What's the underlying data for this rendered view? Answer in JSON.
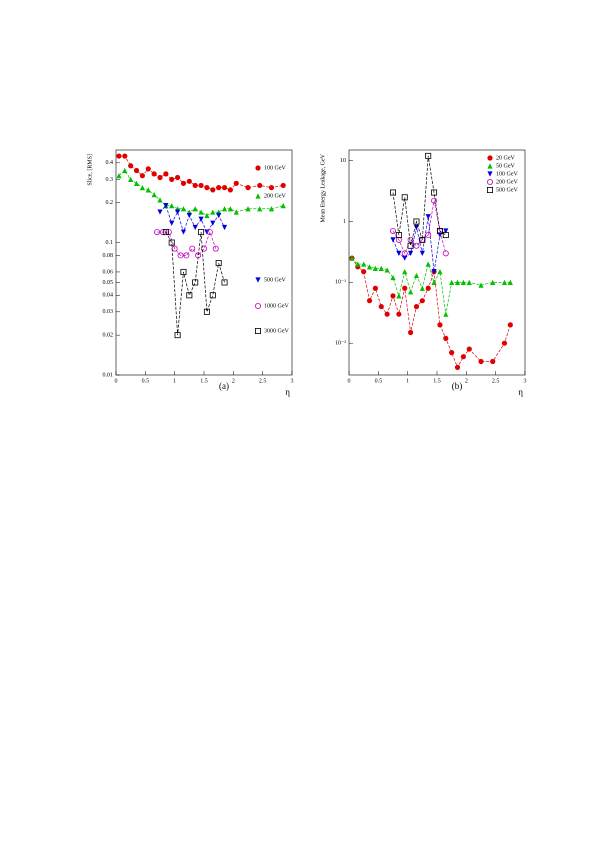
{
  "chart_data": [
    {
      "type": "line",
      "panel_label": "(a)",
      "y_label": "Slice, [RMS]",
      "x_label": "η",
      "log_y": true,
      "xlim": [
        0,
        3
      ],
      "xticks": [
        0,
        0.5,
        1,
        1.5,
        2,
        2.5,
        3
      ],
      "ylim": [
        0.01,
        0.5
      ],
      "yticks": [
        0.01,
        0.02,
        0.03,
        0.04,
        0.05,
        0.06,
        0.08,
        0.1,
        0.2,
        0.3,
        0.4
      ],
      "series": [
        {
          "name": "100 GeV",
          "color": "#e00000",
          "marker": "circle",
          "x": [
            0.05,
            0.15,
            0.25,
            0.35,
            0.45,
            0.55,
            0.65,
            0.75,
            0.85,
            0.95,
            1.05,
            1.15,
            1.25,
            1.35,
            1.45,
            1.55,
            1.65,
            1.75,
            1.85,
            1.95,
            2.05,
            2.25,
            2.45,
            2.65,
            2.85
          ],
          "values": [
            0.45,
            0.45,
            0.38,
            0.35,
            0.32,
            0.36,
            0.33,
            0.31,
            0.33,
            0.3,
            0.31,
            0.28,
            0.29,
            0.27,
            0.27,
            0.26,
            0.25,
            0.26,
            0.26,
            0.25,
            0.28,
            0.26,
            0.27,
            0.26,
            0.27
          ]
        },
        {
          "name": "200 GeV",
          "color": "#00c000",
          "marker": "triangle-up",
          "x": [
            0.05,
            0.15,
            0.25,
            0.35,
            0.45,
            0.55,
            0.65,
            0.75,
            0.85,
            0.95,
            1.05,
            1.15,
            1.25,
            1.35,
            1.45,
            1.55,
            1.65,
            1.75,
            1.85,
            1.95,
            2.05,
            2.25,
            2.45,
            2.65,
            2.85
          ],
          "values": [
            0.32,
            0.35,
            0.3,
            0.28,
            0.26,
            0.25,
            0.23,
            0.21,
            0.19,
            0.19,
            0.18,
            0.18,
            0.17,
            0.18,
            0.17,
            0.16,
            0.17,
            0.17,
            0.18,
            0.18,
            0.17,
            0.18,
            0.18,
            0.18,
            0.19
          ]
        },
        {
          "name": "500 GeV",
          "color": "#0000e0",
          "marker": "triangle-down",
          "x": [
            0.75,
            0.85,
            0.95,
            1.05,
            1.15,
            1.25,
            1.35,
            1.45,
            1.55,
            1.65,
            1.75,
            1.85
          ],
          "values": [
            0.17,
            0.19,
            0.14,
            0.17,
            0.12,
            0.16,
            0.13,
            0.15,
            0.12,
            0.14,
            0.16,
            0.13
          ]
        },
        {
          "name": "1000 GeV",
          "color": "#c000c0",
          "marker": "open-circle",
          "x": [
            0.7,
            0.8,
            0.9,
            1.0,
            1.1,
            1.2,
            1.3,
            1.4,
            1.5,
            1.6,
            1.7
          ],
          "values": [
            0.12,
            0.12,
            0.12,
            0.09,
            0.08,
            0.08,
            0.09,
            0.08,
            0.09,
            0.12,
            0.09
          ]
        },
        {
          "name": "3000 GeV",
          "color": "#000000",
          "marker": "open-square",
          "x": [
            0.85,
            0.95,
            1.05,
            1.15,
            1.25,
            1.35,
            1.45,
            1.55,
            1.65,
            1.75,
            1.85
          ],
          "values": [
            0.12,
            0.1,
            0.02,
            0.06,
            0.04,
            0.05,
            0.12,
            0.03,
            0.04,
            0.07,
            0.05
          ]
        }
      ]
    },
    {
      "type": "line",
      "panel_label": "(b)",
      "y_label": "Mean Energy Leakage, GeV",
      "x_label": "η",
      "log_y": true,
      "xlim": [
        0,
        3
      ],
      "xticks": [
        0,
        0.5,
        1,
        1.5,
        2,
        2.5,
        3
      ],
      "ylim": [
        0.003,
        15
      ],
      "yticks": [
        {
          "value": 0.01,
          "label": "10⁻²"
        },
        {
          "value": 0.1,
          "label": "10⁻¹"
        },
        1,
        10
      ],
      "series": [
        {
          "name": "20 GeV",
          "color": "#e00000",
          "marker": "circle",
          "x": [
            0.05,
            0.15,
            0.25,
            0.35,
            0.45,
            0.55,
            0.65,
            0.75,
            0.85,
            0.95,
            1.05,
            1.15,
            1.25,
            1.35,
            1.45,
            1.55,
            1.65,
            1.75,
            1.85,
            1.95,
            2.05,
            2.25,
            2.45,
            2.65,
            2.75
          ],
          "values": [
            0.25,
            0.18,
            0.15,
            0.05,
            0.08,
            0.04,
            0.03,
            0.06,
            0.03,
            0.08,
            0.015,
            0.04,
            0.05,
            0.08,
            0.15,
            0.02,
            0.012,
            0.007,
            0.004,
            0.006,
            0.008,
            0.005,
            0.005,
            0.01,
            0.02
          ]
        },
        {
          "name": "50 GeV",
          "color": "#00c000",
          "marker": "triangle-up",
          "x": [
            0.05,
            0.15,
            0.25,
            0.35,
            0.45,
            0.55,
            0.65,
            0.75,
            0.85,
            0.95,
            1.05,
            1.15,
            1.25,
            1.35,
            1.45,
            1.55,
            1.65,
            1.75,
            1.85,
            1.95,
            2.05,
            2.25,
            2.45,
            2.65,
            2.75
          ],
          "values": [
            0.25,
            0.2,
            0.2,
            0.18,
            0.17,
            0.17,
            0.16,
            0.12,
            0.06,
            0.15,
            0.07,
            0.13,
            0.08,
            0.2,
            0.1,
            0.15,
            0.03,
            0.1,
            0.1,
            0.1,
            0.1,
            0.09,
            0.1,
            0.1,
            0.1
          ]
        },
        {
          "name": "100 GeV",
          "color": "#0000e0",
          "marker": "triangle-down",
          "x": [
            0.75,
            0.85,
            0.95,
            1.05,
            1.15,
            1.25,
            1.35,
            1.45,
            1.55,
            1.65
          ],
          "values": [
            0.5,
            0.3,
            0.25,
            0.3,
            0.8,
            0.3,
            1.2,
            0.15,
            0.6,
            0.7
          ]
        },
        {
          "name": "200 GeV",
          "color": "#c000c0",
          "marker": "open-circle",
          "x": [
            0.75,
            0.85,
            0.95,
            1.05,
            1.15,
            1.25,
            1.35,
            1.45,
            1.55,
            1.65
          ],
          "values": [
            0.7,
            0.5,
            0.3,
            0.5,
            0.4,
            0.5,
            0.6,
            2.2,
            0.7,
            0.3
          ]
        },
        {
          "name": "500 GeV",
          "color": "#000000",
          "marker": "open-square",
          "x": [
            0.75,
            0.85,
            0.95,
            1.05,
            1.15,
            1.25,
            1.35,
            1.45,
            1.55,
            1.65
          ],
          "values": [
            3.0,
            0.6,
            2.5,
            0.4,
            1.0,
            0.5,
            12,
            3.0,
            0.7,
            0.6
          ]
        }
      ]
    }
  ]
}
